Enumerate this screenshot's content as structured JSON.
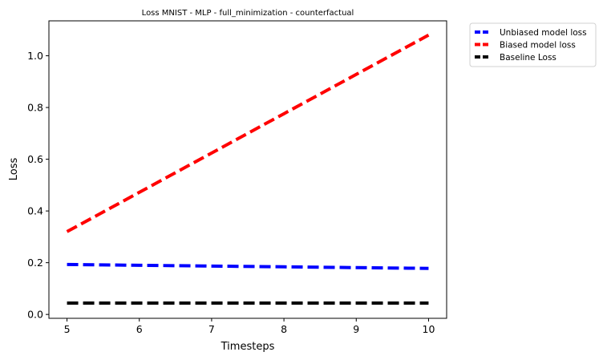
{
  "chart_data": {
    "type": "line",
    "title": "Loss MNIST - MLP - full_minimization - counterfactual",
    "xlabel": "Timesteps",
    "ylabel": "Loss",
    "x": [
      5,
      6,
      7,
      8,
      9,
      10
    ],
    "xlim": [
      4.75,
      10.25
    ],
    "ylim": [
      -0.015,
      1.135
    ],
    "xticks": [
      5,
      6,
      7,
      8,
      9,
      10
    ],
    "yticks": [
      0.0,
      0.2,
      0.4,
      0.6,
      0.8,
      1.0
    ],
    "ytick_labels": [
      "0.0",
      "0.2",
      "0.4",
      "0.6",
      "0.8",
      "1.0"
    ],
    "grid": false,
    "legend_placement": "outside-top-right",
    "series": [
      {
        "name": "Unbiased model loss",
        "color": "#0000ff",
        "style": "dashed",
        "values": [
          0.193,
          0.19,
          0.187,
          0.184,
          0.181,
          0.178
        ]
      },
      {
        "name": "Biased model loss",
        "color": "#ff0000",
        "style": "dashed",
        "values": [
          0.32,
          0.472,
          0.624,
          0.776,
          0.928,
          1.08
        ]
      },
      {
        "name": "Baseline Loss",
        "color": "#000000",
        "style": "dashed",
        "values": [
          0.044,
          0.044,
          0.044,
          0.044,
          0.044,
          0.044
        ]
      }
    ]
  }
}
